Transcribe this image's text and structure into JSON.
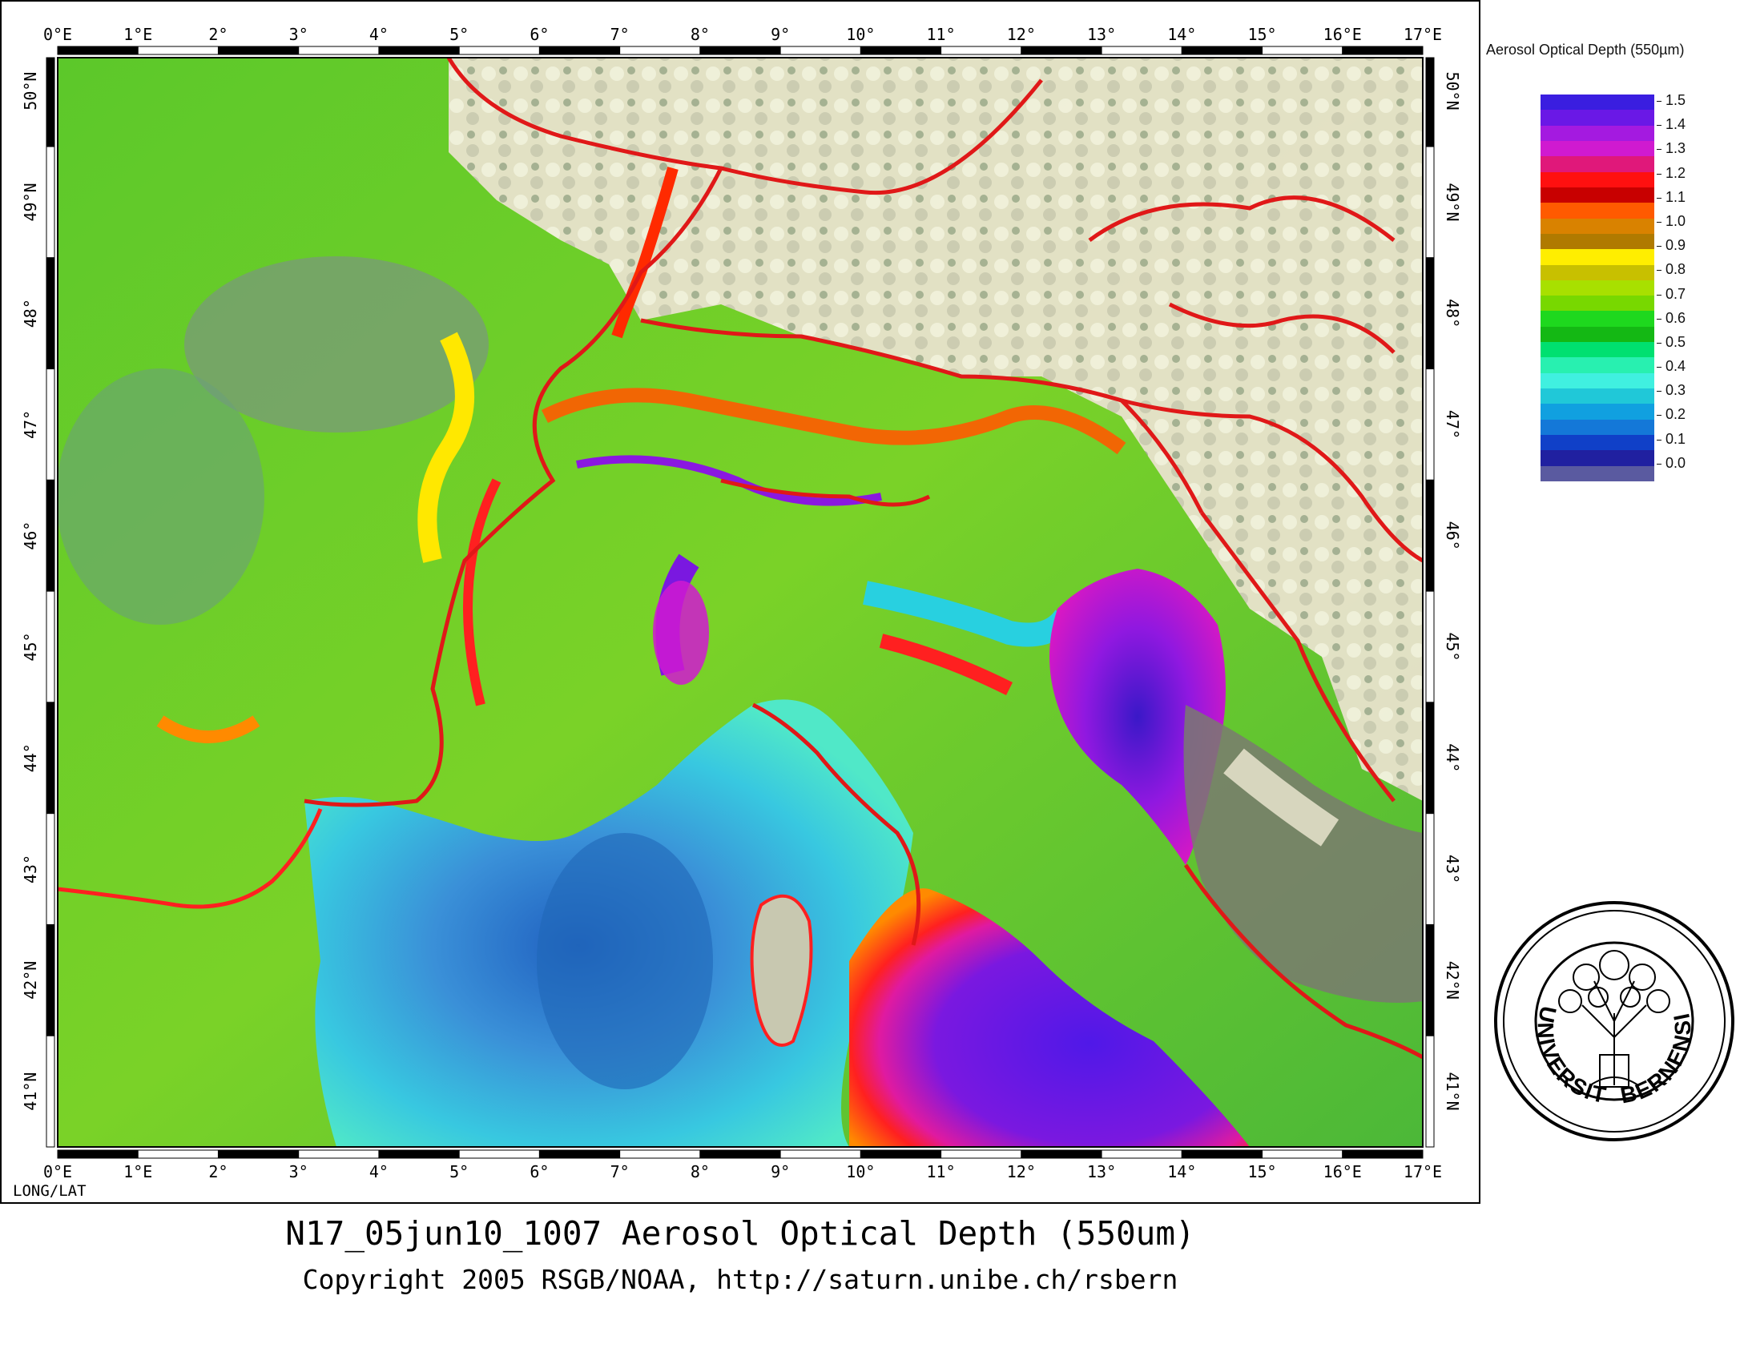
{
  "map": {
    "top_lon_labels": [
      "0°E",
      "1°E",
      "2°",
      "3°",
      "4°",
      "5°",
      "6°",
      "7°",
      "8°",
      "9°",
      "10°",
      "11°",
      "12°",
      "13°",
      "14°",
      "15°",
      "16°E",
      "17°E"
    ],
    "bottom_lon_labels": [
      "0°E",
      "1°E",
      "2°",
      "3°",
      "4°",
      "5°",
      "6°",
      "7°",
      "8°",
      "9°",
      "10°",
      "11°",
      "12°",
      "13°",
      "14°",
      "15°",
      "16°E",
      "17°E"
    ],
    "left_lat_labels": [
      "50°N",
      "49°N",
      "48°",
      "47°",
      "46°",
      "45°",
      "44°",
      "43°",
      "42°N",
      "41°N"
    ],
    "right_lat_labels": [
      "50°N",
      "49°N",
      "48°",
      "47°",
      "46°",
      "45°",
      "44°",
      "43°",
      "42°N",
      "41°N"
    ],
    "corner_label": "LONG/LAT"
  },
  "legend": {
    "title": "Aerosol Optical Depth (550µm)",
    "labels": [
      "1.5",
      "1.4",
      "1.3",
      "1.2",
      "1.1",
      "1.0",
      "0.9",
      "0.8",
      "0.7",
      "0.6",
      "0.5",
      "0.4",
      "0.3",
      "0.2",
      "0.1",
      "0.0"
    ],
    "colors": [
      "#3a1ee0",
      "#6a18e6",
      "#a41ae0",
      "#d01ad0",
      "#e0187a",
      "#ff1010",
      "#c80000",
      "#ff5a00",
      "#d98200",
      "#b07a00",
      "#ffee00",
      "#c8c000",
      "#a8e000",
      "#78d800",
      "#1ed81e",
      "#14b814",
      "#00e070",
      "#28f0b0",
      "#40f0e0",
      "#20c8d8",
      "#10a0e0",
      "#1478d8",
      "#1040c8",
      "#2020a0",
      "#5a5aa0"
    ]
  },
  "seal": {
    "text": "UNIVERSITAS BERNENSIS"
  },
  "titles": {
    "main": "N17_05jun10_1007 Aerosol Optical Depth (550um)",
    "copyright": "Copyright 2005 RSGB/NOAA, http://saturn.unibe.ch/rsbern"
  }
}
